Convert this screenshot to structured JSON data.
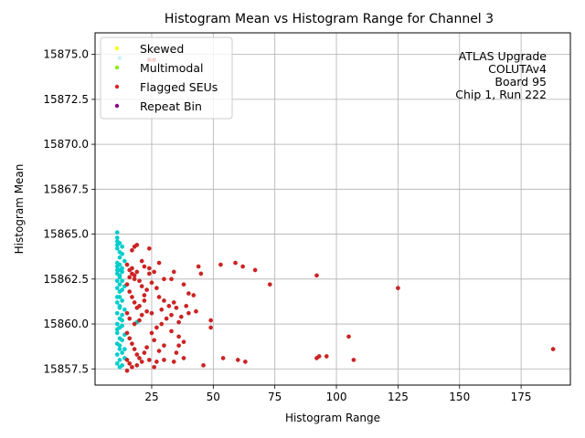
{
  "chart_data": {
    "type": "scatter",
    "title": "Histogram Mean vs Histogram Range for Channel 3",
    "xlabel": "Histogram Range",
    "ylabel": "Histogram Mean",
    "xlim": [
      2,
      195
    ],
    "ylim": [
      15856.6,
      15876.2
    ],
    "xticks": [
      25,
      50,
      75,
      100,
      125,
      150,
      175
    ],
    "yticks": [
      15857.5,
      15860.0,
      15862.5,
      15865.0,
      15867.5,
      15870.0,
      15872.5,
      15875.0
    ],
    "grid": true,
    "legend_position": "top-left",
    "annotation": [
      "ATLAS Upgrade",
      "COLUTAv4",
      "Board 95",
      "Chip 1, Run 222"
    ],
    "series": [
      {
        "name": "",
        "color": "#00cccc",
        "points": [
          [
            11,
            15865.1
          ],
          [
            11,
            15864.8
          ],
          [
            11,
            15864.6
          ],
          [
            11,
            15864.4
          ],
          [
            11,
            15864.2
          ],
          [
            12,
            15864.0
          ],
          [
            12,
            15863.7
          ],
          [
            11,
            15863.4
          ],
          [
            11,
            15863.2
          ],
          [
            12,
            15863.0
          ],
          [
            11,
            15862.8
          ],
          [
            12,
            15862.6
          ],
          [
            11,
            15862.4
          ],
          [
            12,
            15862.2
          ],
          [
            11,
            15862.0
          ],
          [
            12,
            15861.8
          ],
          [
            12,
            15861.5
          ],
          [
            11,
            15861.2
          ],
          [
            12,
            15860.9
          ],
          [
            11,
            15860.6
          ],
          [
            12,
            15860.3
          ],
          [
            11,
            15860.0
          ],
          [
            12,
            15859.8
          ],
          [
            11,
            15859.5
          ],
          [
            12,
            15859.2
          ],
          [
            11,
            15858.9
          ],
          [
            12,
            15858.6
          ],
          [
            11,
            15858.3
          ],
          [
            12,
            15858.0
          ],
          [
            11,
            15857.8
          ],
          [
            12,
            15857.6
          ],
          [
            13,
            15864.3
          ],
          [
            13,
            15863.9
          ],
          [
            13,
            15863.1
          ],
          [
            13,
            15862.4
          ],
          [
            13,
            15861.9
          ],
          [
            13,
            15861.3
          ],
          [
            13,
            15860.5
          ],
          [
            13,
            15859.9
          ],
          [
            13,
            15859.1
          ],
          [
            13,
            15858.4
          ],
          [
            13,
            15857.7
          ],
          [
            14,
            15863.5
          ],
          [
            14,
            15862.1
          ],
          [
            14,
            15860.8
          ],
          [
            14,
            15859.4
          ],
          [
            14,
            15858.1
          ],
          [
            12,
            15864.5
          ],
          [
            12,
            15863.3
          ],
          [
            12,
            15861.0
          ],
          [
            12,
            15858.8
          ],
          [
            11,
            15863.0
          ],
          [
            11,
            15861.5
          ],
          [
            11,
            15859.7
          ],
          [
            13,
            15862.9
          ],
          [
            14,
            15858.6
          ],
          [
            13,
            15860.2
          ],
          [
            12,
            15862.7
          ],
          [
            19,
            15860.1
          ],
          [
            12,
            15874.8
          ]
        ]
      },
      {
        "name": "Flagged SEUs",
        "color": "#cc2222",
        "points": [
          [
            15,
            15863.3
          ],
          [
            16,
            15863.0
          ],
          [
            17,
            15862.8
          ],
          [
            18,
            15862.5
          ],
          [
            19,
            15862.9
          ],
          [
            16,
            15862.6
          ],
          [
            17,
            15863.1
          ],
          [
            18,
            15862.7
          ],
          [
            15,
            15862.2
          ],
          [
            16,
            15861.8
          ],
          [
            17,
            15861.5
          ],
          [
            18,
            15861.2
          ],
          [
            19,
            15860.9
          ],
          [
            20,
            15861.0
          ],
          [
            21,
            15860.5
          ],
          [
            20,
            15860.2
          ],
          [
            15,
            15860.6
          ],
          [
            16,
            15860.3
          ],
          [
            18,
            15860.0
          ],
          [
            15,
            15859.5
          ],
          [
            16,
            15859.2
          ],
          [
            17,
            15858.9
          ],
          [
            18,
            15858.6
          ],
          [
            19,
            15858.3
          ],
          [
            20,
            15858.1
          ],
          [
            21,
            15857.9
          ],
          [
            22,
            15858.4
          ],
          [
            23,
            15858.7
          ],
          [
            15,
            15858.0
          ],
          [
            16,
            15857.8
          ],
          [
            17,
            15857.6
          ],
          [
            19,
            15857.7
          ],
          [
            15,
            15857.4
          ],
          [
            17,
            15864.1
          ],
          [
            18,
            15864.3
          ],
          [
            19,
            15864.4
          ],
          [
            24,
            15864.2
          ],
          [
            28,
            15863.4
          ],
          [
            21,
            15863.5
          ],
          [
            22,
            15863.2
          ],
          [
            24,
            15863.1
          ],
          [
            26,
            15862.9
          ],
          [
            24,
            15862.8
          ],
          [
            30,
            15862.5
          ],
          [
            25,
            15862.3
          ],
          [
            27,
            15862.0
          ],
          [
            23,
            15861.9
          ],
          [
            22,
            15861.6
          ],
          [
            28,
            15861.5
          ],
          [
            30,
            15861.3
          ],
          [
            32,
            15861.0
          ],
          [
            34,
            15861.2
          ],
          [
            35,
            15860.9
          ],
          [
            29,
            15860.8
          ],
          [
            25,
            15860.6
          ],
          [
            33,
            15860.5
          ],
          [
            31,
            15860.3
          ],
          [
            29,
            15860.0
          ],
          [
            27,
            15859.8
          ],
          [
            33,
            15859.6
          ],
          [
            36,
            15859.3
          ],
          [
            38,
            15859.0
          ],
          [
            36,
            15858.8
          ],
          [
            24,
            15858.0
          ],
          [
            27,
            15857.9
          ],
          [
            30,
            15858.0
          ],
          [
            34,
            15857.9
          ],
          [
            38,
            15858.1
          ],
          [
            26,
            15857.6
          ],
          [
            33,
            15862.5
          ],
          [
            34,
            15862.9
          ],
          [
            38,
            15862.2
          ],
          [
            40,
            15861.7
          ],
          [
            42,
            15861.6
          ],
          [
            39,
            15861.0
          ],
          [
            40,
            15860.6
          ],
          [
            43,
            15860.7
          ],
          [
            37,
            15860.4
          ],
          [
            36,
            15860.1
          ],
          [
            44,
            15863.2
          ],
          [
            45,
            15862.8
          ],
          [
            49,
            15860.2
          ],
          [
            49,
            15859.8
          ],
          [
            53,
            15863.3
          ],
          [
            54,
            15858.1
          ],
          [
            59,
            15863.4
          ],
          [
            60,
            15858.0
          ],
          [
            62,
            15863.2
          ],
          [
            63,
            15857.9
          ],
          [
            67,
            15863.0
          ],
          [
            73,
            15862.2
          ],
          [
            92,
            15862.7
          ],
          [
            92,
            15858.1
          ],
          [
            93,
            15858.2
          ],
          [
            96,
            15858.2
          ],
          [
            105,
            15859.3
          ],
          [
            107,
            15858.0
          ],
          [
            125,
            15862.0
          ],
          [
            188,
            15858.6
          ],
          [
            20,
            15862.4
          ],
          [
            21,
            15862.1
          ],
          [
            22,
            15861.3
          ],
          [
            23,
            15860.7
          ],
          [
            25,
            15859.5
          ],
          [
            26,
            15859.1
          ],
          [
            28,
            15858.5
          ],
          [
            30,
            15858.8
          ],
          [
            35,
            15858.4
          ],
          [
            46,
            15857.7
          ],
          [
            24,
            15874.7
          ],
          [
            26,
            15874.7
          ]
        ]
      }
    ],
    "legend": [
      {
        "label": "Skewed",
        "color": "#ffff00"
      },
      {
        "label": "Multimodal",
        "color": "#88ee00"
      },
      {
        "label": "Flagged SEUs",
        "color": "#dd2222"
      },
      {
        "label": "Repeat Bin",
        "color": "#880088"
      }
    ]
  }
}
